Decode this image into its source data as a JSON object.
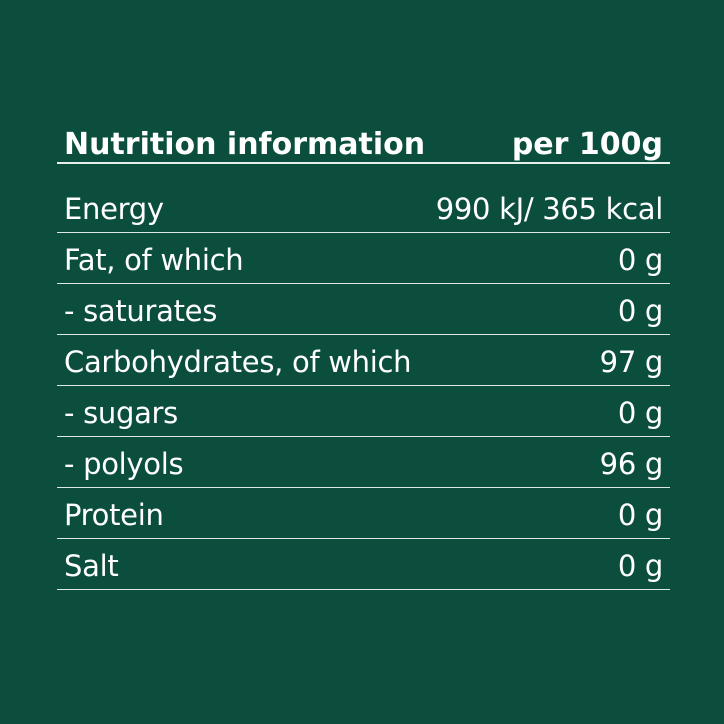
{
  "header": {
    "title": "Nutrition information",
    "per": "per 100g"
  },
  "rows": [
    {
      "label": "Energy",
      "value": "990 kJ/ 365 kcal"
    },
    {
      "label": "Fat, of which",
      "value": "0 g"
    },
    {
      "label": "- saturates",
      "value": "0 g"
    },
    {
      "label": "Carbohydrates, of which",
      "value": "97 g"
    },
    {
      "label": "- sugars",
      "value": "0 g"
    },
    {
      "label": "- polyols",
      "value": "96 g"
    },
    {
      "label": "Protein",
      "value": "0 g"
    },
    {
      "label": "Salt",
      "value": "0 g"
    }
  ],
  "colors": {
    "background": "#0b4e3e",
    "text": "#ffffff"
  }
}
